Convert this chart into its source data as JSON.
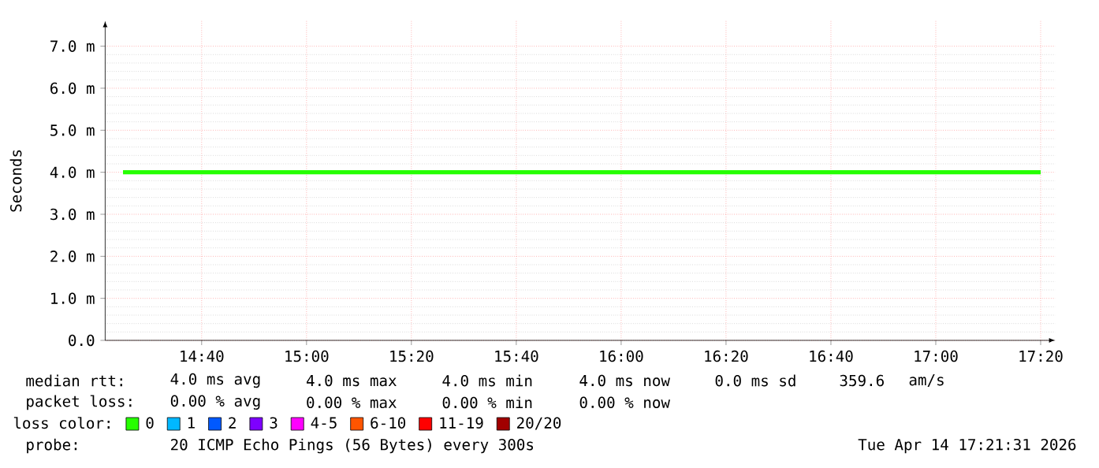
{
  "chart_data": {
    "type": "line",
    "ylabel": "Seconds",
    "xlim": [
      14.36,
      17.38
    ],
    "ylim": [
      0,
      7.6
    ],
    "xticks": [
      {
        "value": 14.6667,
        "label": "14:40"
      },
      {
        "value": 15,
        "label": "15:00"
      },
      {
        "value": 15.3333,
        "label": "15:20"
      },
      {
        "value": 15.6667,
        "label": "15:40"
      },
      {
        "value": 16,
        "label": "16:00"
      },
      {
        "value": 16.3333,
        "label": "16:20"
      },
      {
        "value": 16.6667,
        "label": "16:40"
      },
      {
        "value": 17,
        "label": "17:00"
      },
      {
        "value": 17.3333,
        "label": "17:20"
      }
    ],
    "yticks": [
      {
        "value": 0,
        "label": "0.0"
      },
      {
        "value": 1,
        "label": "1.0 m"
      },
      {
        "value": 2,
        "label": "2.0 m"
      },
      {
        "value": 3,
        "label": "3.0 m"
      },
      {
        "value": 4,
        "label": "4.0 m"
      },
      {
        "value": 5,
        "label": "5.0 m"
      },
      {
        "value": 6,
        "label": "6.0 m"
      },
      {
        "value": 7,
        "label": "7.0 m"
      }
    ],
    "grid": true,
    "legend": "bottom",
    "legend_title": "loss color:",
    "marker": "none",
    "line_style": "solid",
    "series": [
      {
        "name": "0",
        "color": "#26ff00",
        "x": [
          14.4167,
          17.3333
        ],
        "values": [
          4.0,
          4.0
        ]
      },
      {
        "name": "1",
        "color": "#00b8ff"
      },
      {
        "name": "2",
        "color": "#0059ff"
      },
      {
        "name": "3",
        "color": "#7e00ff"
      },
      {
        "name": "4-5",
        "color": "#ff00ff"
      },
      {
        "name": "6-10",
        "color": "#ff5500"
      },
      {
        "name": "11-19",
        "color": "#ff0000"
      },
      {
        "name": "20/20",
        "color": "#a10000"
      }
    ],
    "annotations": [
      "median rtt:",
      "4.0 ms avg",
      "4.0 ms max",
      "4.0 ms min",
      "4.0 ms now",
      "0.0 ms sd",
      "359.6",
      "am/s",
      "packet loss:",
      "0.00 % avg",
      "0.00 % max",
      "0.00 % min",
      "0.00 % now",
      "probe:",
      "20 ICMP Echo Pings (56 Bytes) every 300s",
      "Tue Apr 14 17:21:31 2026"
    ]
  }
}
